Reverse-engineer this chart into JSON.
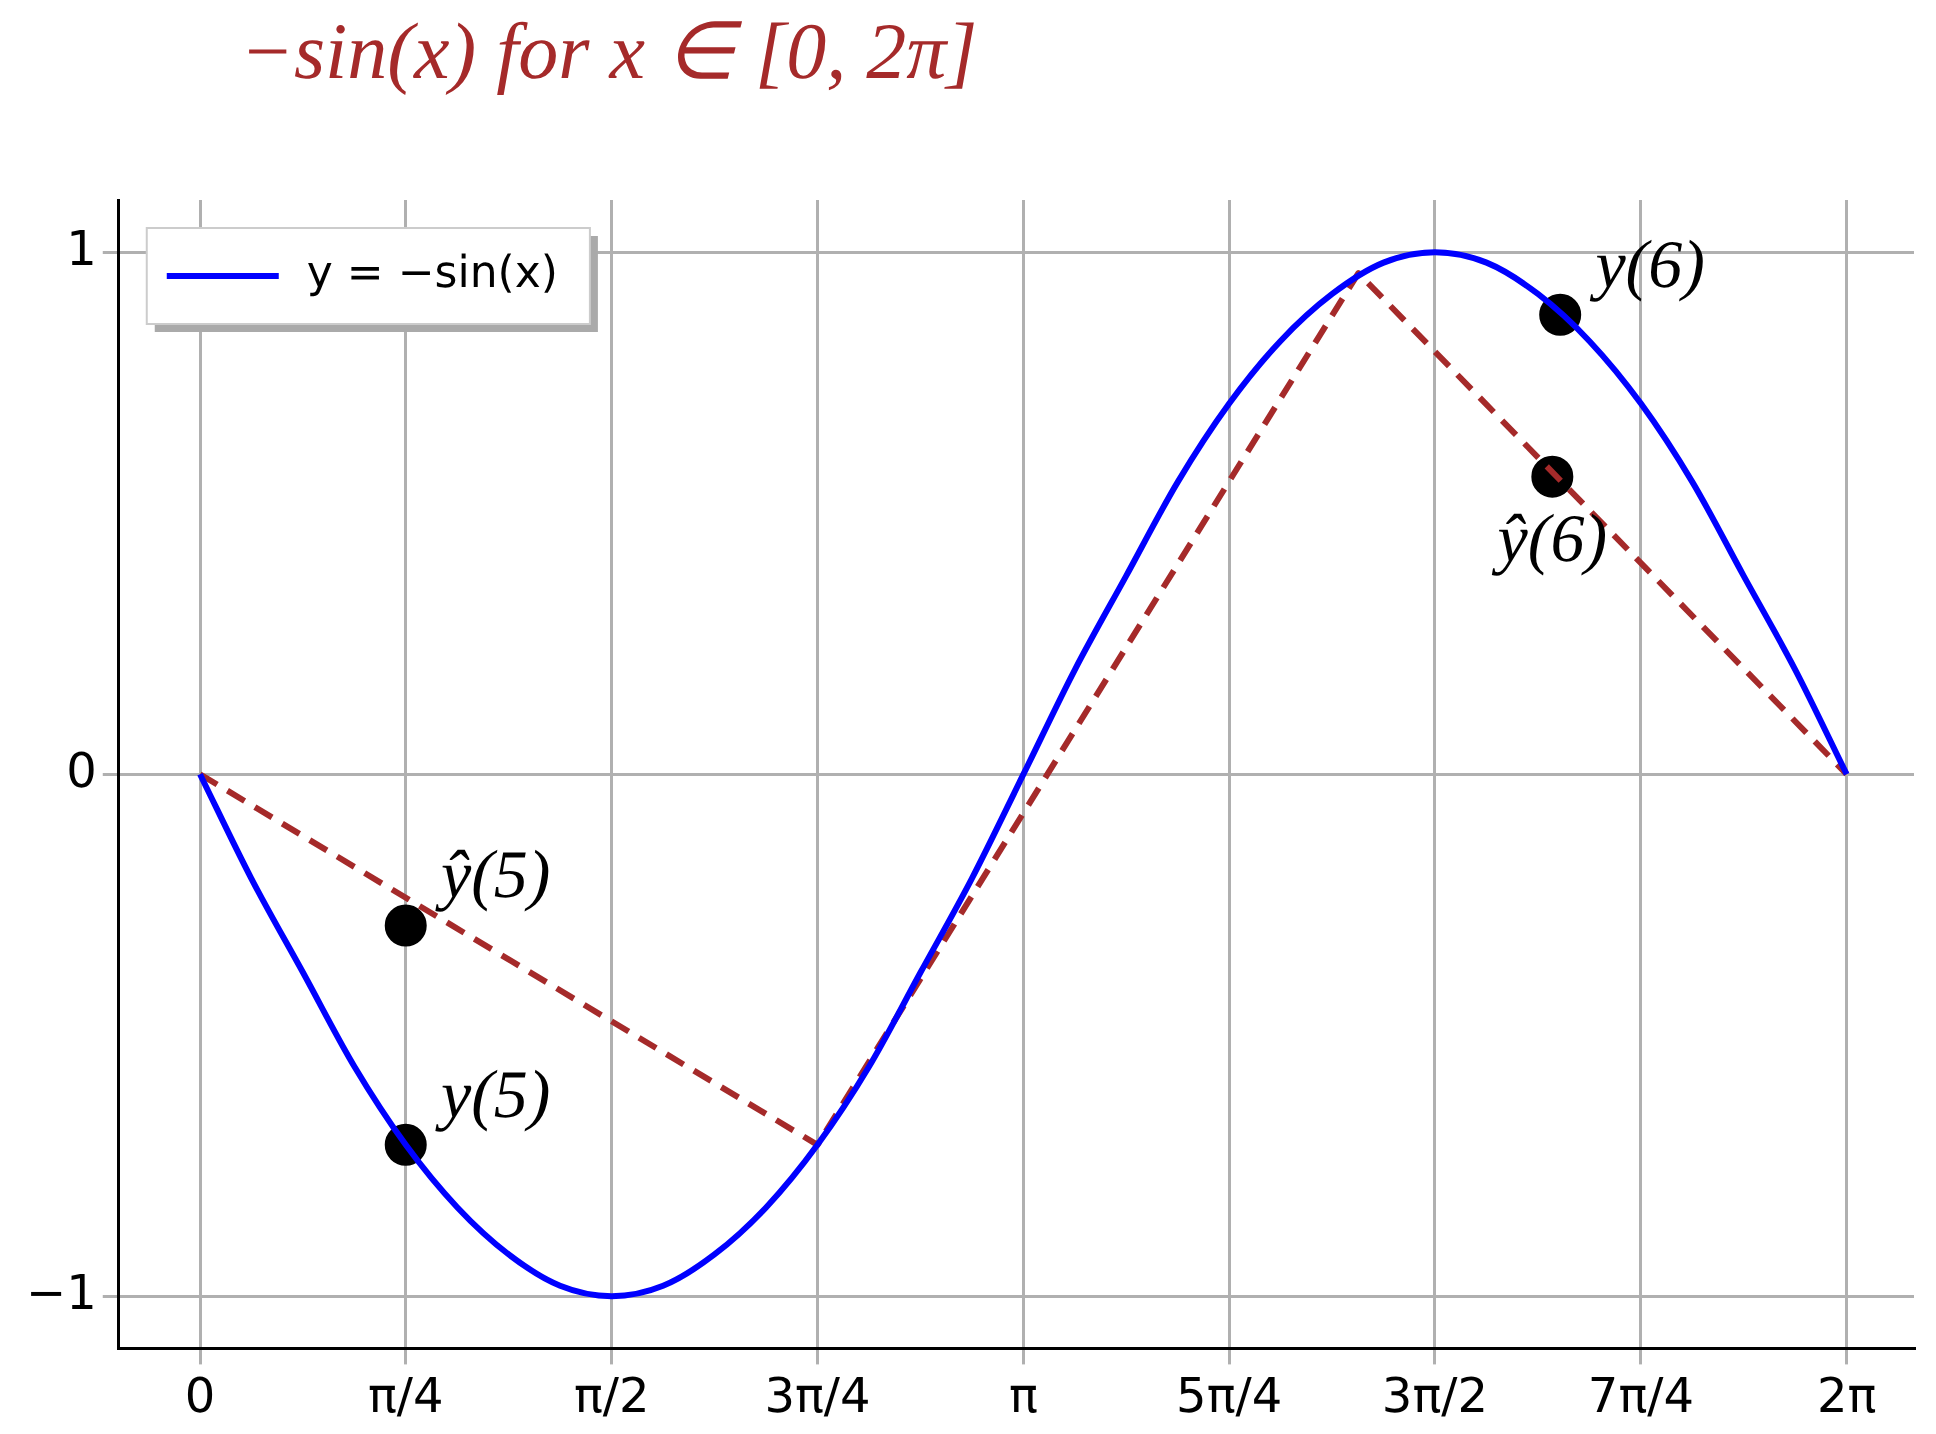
{
  "chart_data": {
    "type": "line",
    "title": "−sin(x) for x ∈ [0, 2π]",
    "xlim": [
      -0.31,
      6.54
    ],
    "ylim": [
      -1.1,
      1.1
    ],
    "xticks": [
      0,
      {
        "value": 0.785,
        "label": "π/4"
      },
      {
        "value": 1.571,
        "label": "π/2"
      },
      {
        "value": 2.356,
        "label": "3π/4"
      },
      {
        "value": 3.142,
        "label": "π"
      },
      {
        "value": 3.927,
        "label": "5π/4"
      },
      {
        "value": 4.712,
        "label": "3π/2"
      },
      {
        "value": 5.498,
        "label": "7π/4"
      },
      {
        "value": 6.283,
        "label": "2π"
      }
    ],
    "yticks": [
      -1,
      0,
      1
    ],
    "grid": true,
    "legend": "top left",
    "series": [
      {
        "name": "y = −sin(x)",
        "color": "#0000ff",
        "line_style": "solid",
        "x": [
          0,
          0.196,
          0.393,
          0.589,
          0.785,
          0.982,
          1.178,
          1.374,
          1.571,
          1.767,
          1.963,
          2.16,
          2.356,
          2.553,
          2.749,
          2.945,
          3.142,
          3.338,
          3.534,
          3.731,
          3.927,
          4.123,
          4.32,
          4.516,
          4.712,
          4.909,
          5.105,
          5.301,
          5.498,
          5.694,
          5.89,
          6.087,
          6.283
        ],
        "values": [
          0,
          -0.2,
          -0.38,
          -0.56,
          -0.71,
          -0.83,
          -0.92,
          -0.98,
          -1,
          -0.98,
          -0.92,
          -0.83,
          -0.71,
          -0.56,
          -0.38,
          -0.2,
          0,
          0.2,
          0.38,
          0.56,
          0.71,
          0.83,
          0.92,
          0.98,
          1,
          0.98,
          0.92,
          0.83,
          0.71,
          0.56,
          0.38,
          0.2,
          0
        ]
      },
      {
        "color": "#a52a2a",
        "line_style": "dashed",
        "x": [
          0,
          2.356,
          4.42,
          6.283
        ],
        "values": [
          0,
          -0.71,
          0.96,
          0
        ]
      },
      {
        "type": "scatter",
        "color": "#000000",
        "marker": "circle",
        "x": [
          0.785,
          0.785,
          5.19,
          5.16
        ],
        "values": [
          -0.71,
          -0.29,
          0.88,
          0.57
        ]
      }
    ],
    "annotations": [
      {
        "text": "y(5)",
        "x": 0.785,
        "y": -0.71
      },
      {
        "text": "ŷ(5)",
        "x": 0.785,
        "y": -0.29
      },
      {
        "text": "y(6)",
        "x": 5.19,
        "y": 0.88
      },
      {
        "text": "ŷ(6)",
        "x": 5.16,
        "y": 0.57
      }
    ]
  }
}
